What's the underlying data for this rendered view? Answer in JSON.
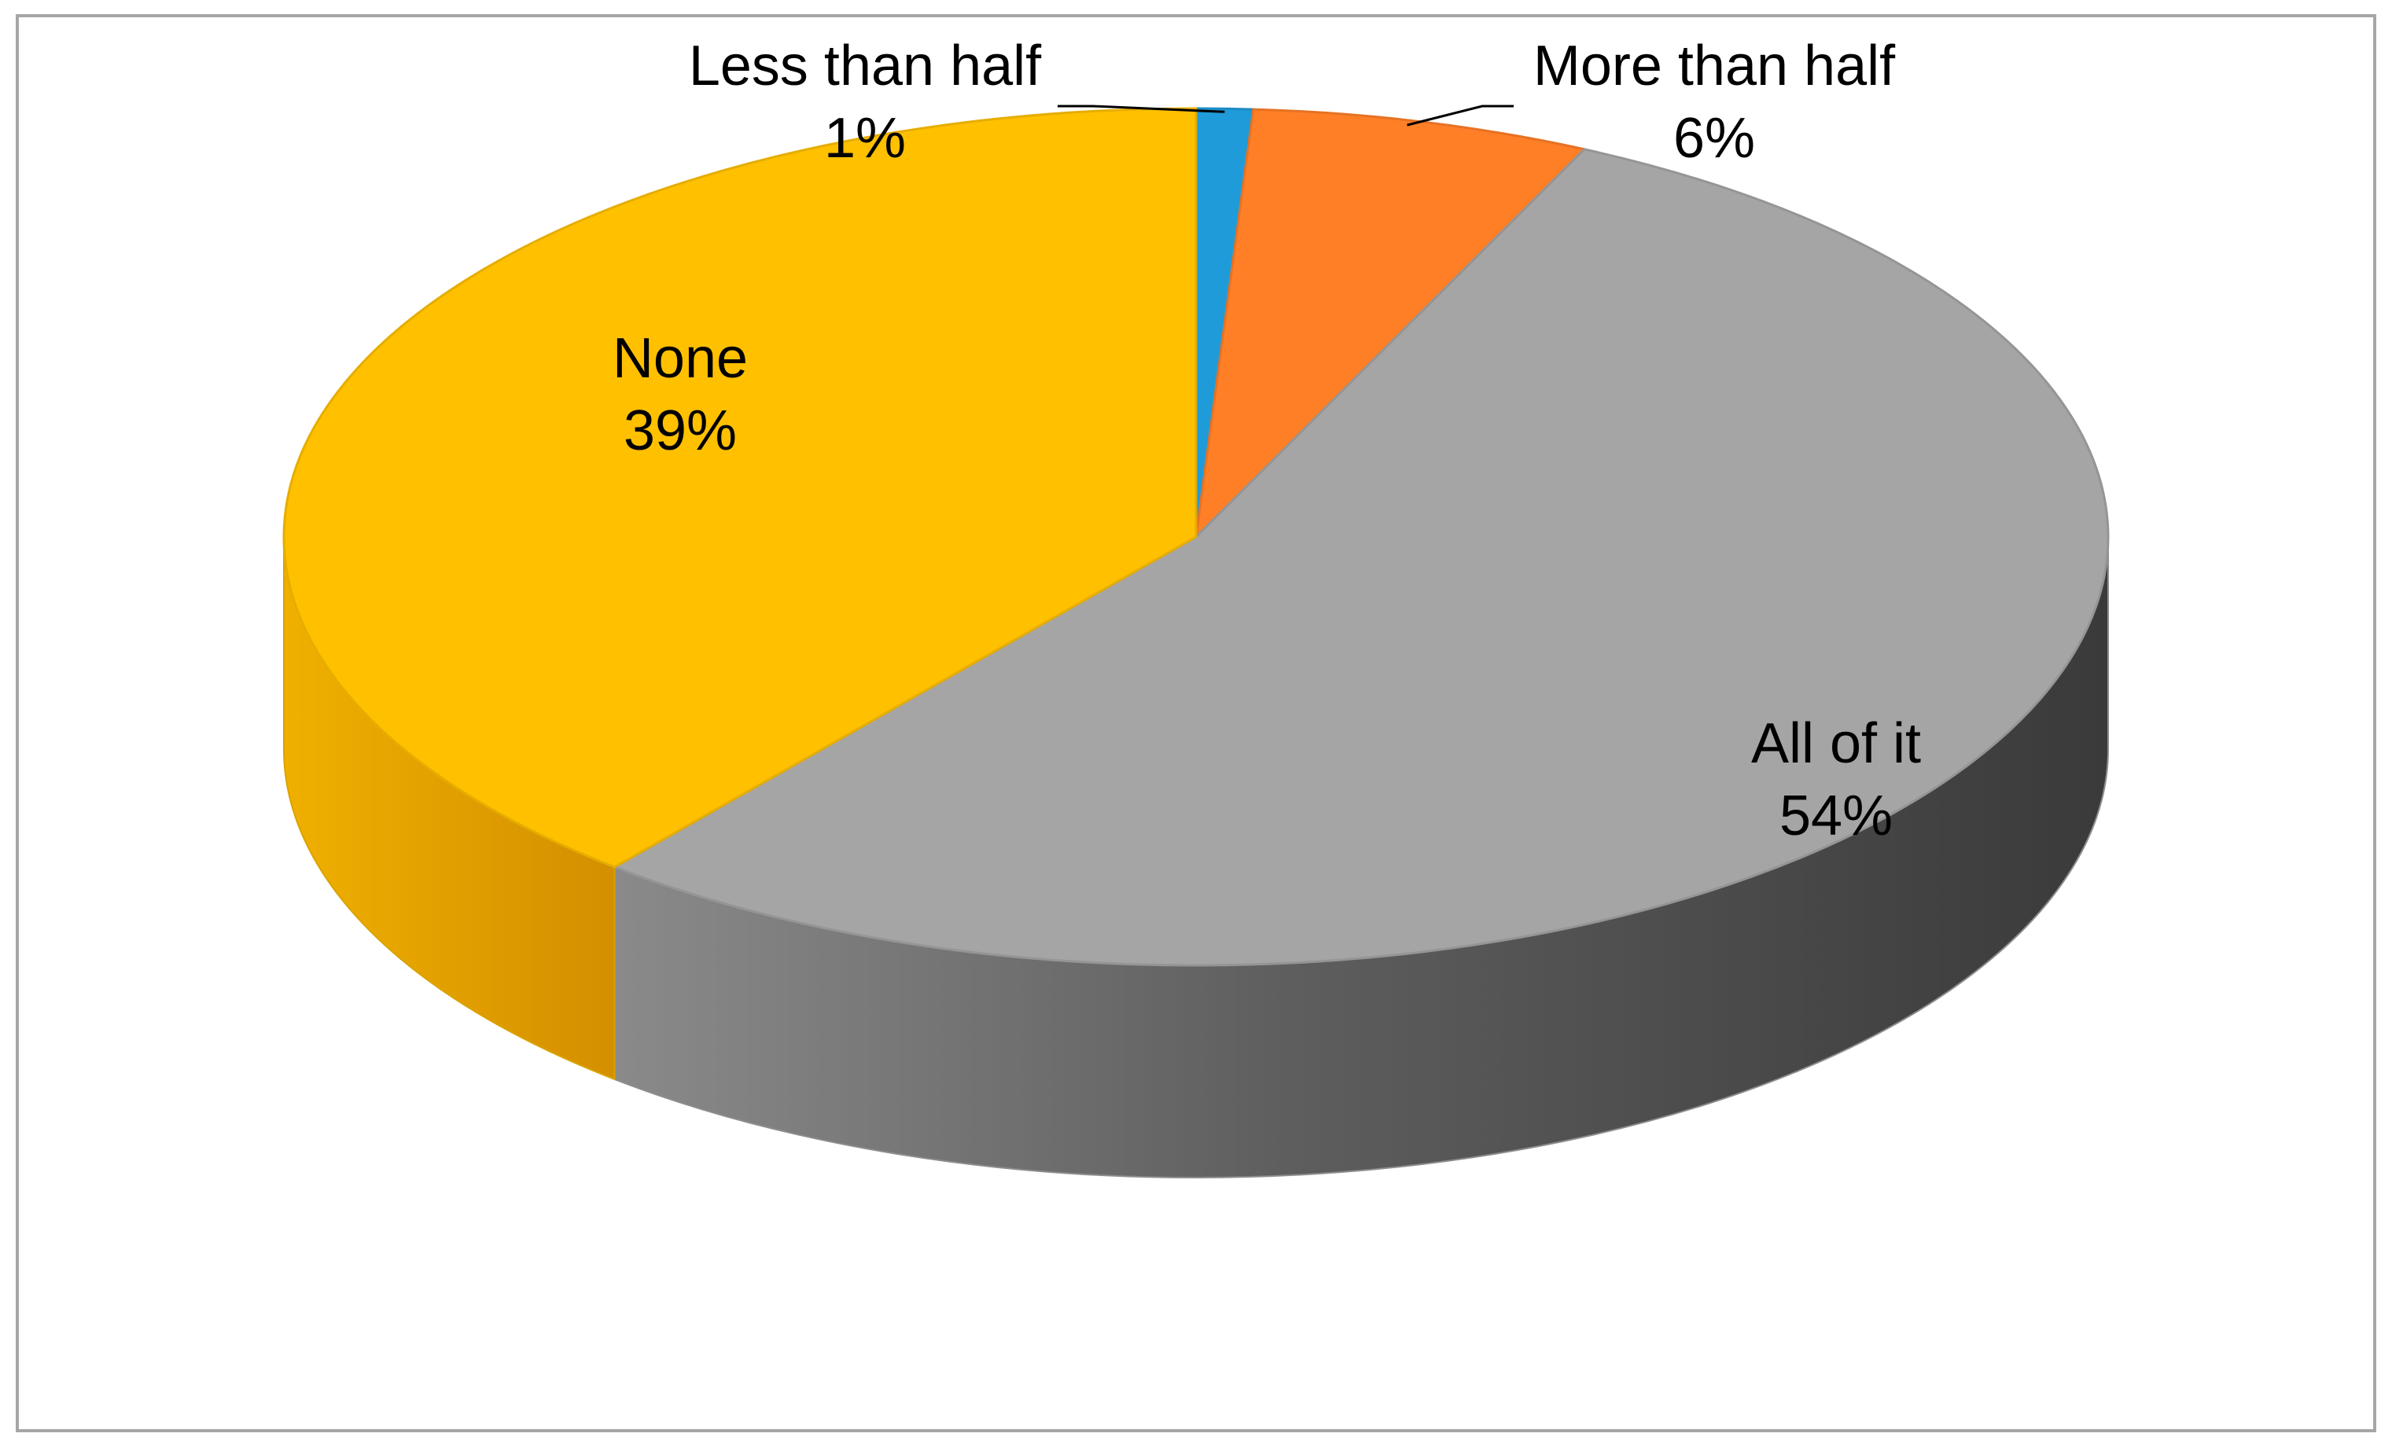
{
  "chart_data": {
    "type": "pie",
    "style": "3d-exploded-none",
    "title": "",
    "slices": [
      {
        "label": "Less than half",
        "value": 1,
        "value_label": "1%",
        "color": "#1F9BD9"
      },
      {
        "label": "More than half",
        "value": 6,
        "value_label": "6%",
        "color": "#FF7F27"
      },
      {
        "label": "All of it",
        "value": 54,
        "value_label": "54%",
        "color": "#A5A5A5"
      },
      {
        "label": "None",
        "value": 39,
        "value_label": "39%",
        "color": "#FFC000"
      }
    ],
    "start_direction": "top",
    "winding": "clockwise",
    "legend": "none",
    "data_labels": "category-and-percent",
    "border_color": "#A6A6A6"
  }
}
